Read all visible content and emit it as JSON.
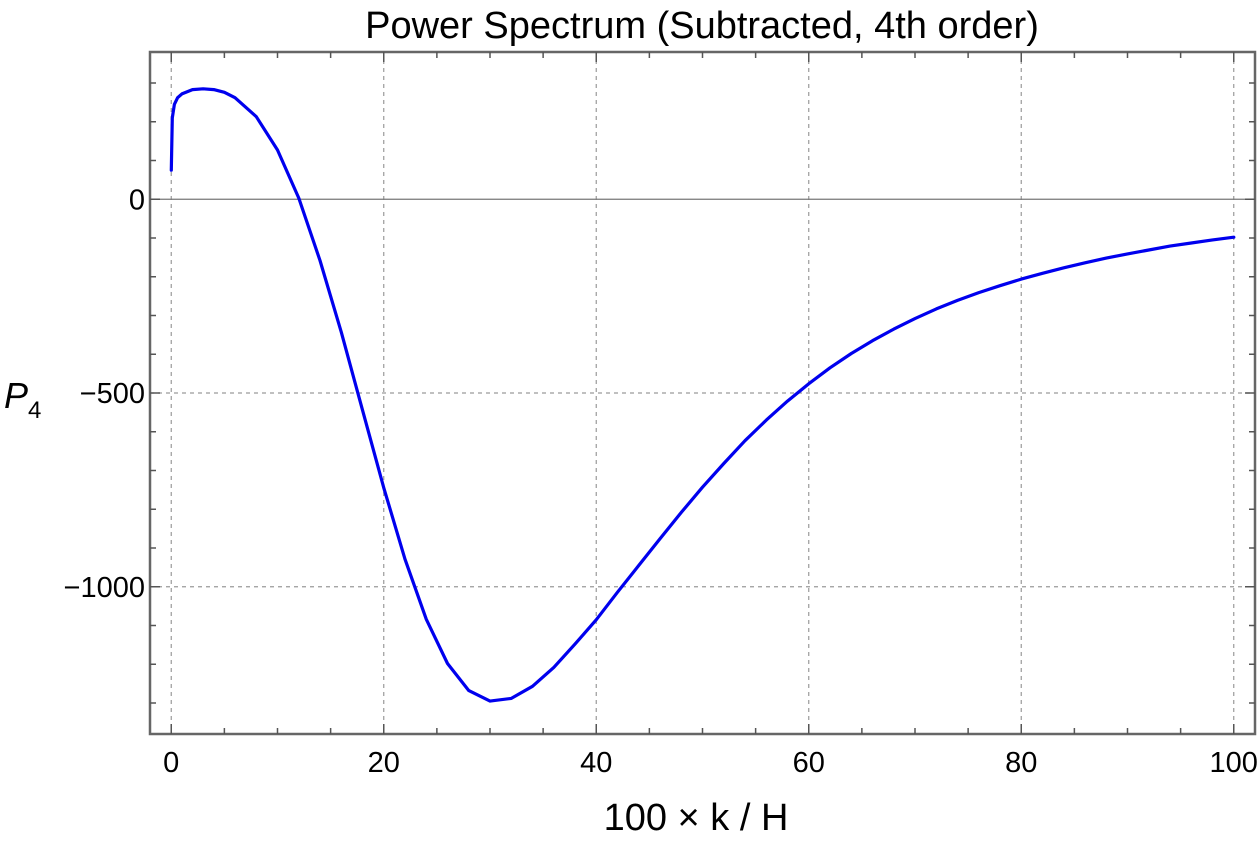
{
  "chart_data": {
    "type": "line",
    "title": "Power Spectrum (Subtracted, 4th order)",
    "xlabel": "100 × k / H",
    "ylabel": "P",
    "ylabel_subscript": "4",
    "xlim": [
      -2,
      102
    ],
    "ylim": [
      -1380,
      380
    ],
    "xticks": [
      0,
      20,
      40,
      60,
      80,
      100
    ],
    "xtick_labels": [
      "0",
      "20",
      "40",
      "60",
      "80",
      "100"
    ],
    "yticks": [
      -1000,
      -500,
      0
    ],
    "ytick_labels": [
      "−1000",
      "−500",
      "0"
    ],
    "grid": true,
    "series": [
      {
        "color": "#0000ee",
        "x": [
          0,
          0.1,
          0.3,
          0.6,
          1,
          2,
          3,
          4,
          5,
          6,
          8,
          10,
          12,
          14,
          16,
          18,
          20,
          22,
          24,
          26,
          28,
          30,
          32,
          34,
          36,
          38,
          40,
          42,
          44,
          46,
          48,
          50,
          52,
          54,
          56,
          58,
          60,
          62,
          64,
          66,
          68,
          70,
          72,
          74,
          76,
          78,
          80,
          82,
          84,
          86,
          88,
          90,
          92,
          94,
          96,
          98,
          100
        ],
        "y": [
          75,
          210,
          245,
          262,
          272,
          283,
          285,
          283,
          276,
          262,
          213,
          127,
          3,
          -158,
          -343,
          -544,
          -745,
          -929,
          -1084,
          -1198,
          -1268,
          -1295,
          -1288,
          -1257,
          -1208,
          -1148,
          -1085,
          -1014,
          -945,
          -876,
          -808,
          -743,
          -682,
          -623,
          -570,
          -521,
          -476,
          -435,
          -398,
          -365,
          -335,
          -308,
          -283,
          -261,
          -241,
          -223,
          -206,
          -191,
          -177,
          -164,
          -152,
          -141,
          -131,
          -121,
          -113,
          -105,
          -98
        ]
      }
    ]
  }
}
